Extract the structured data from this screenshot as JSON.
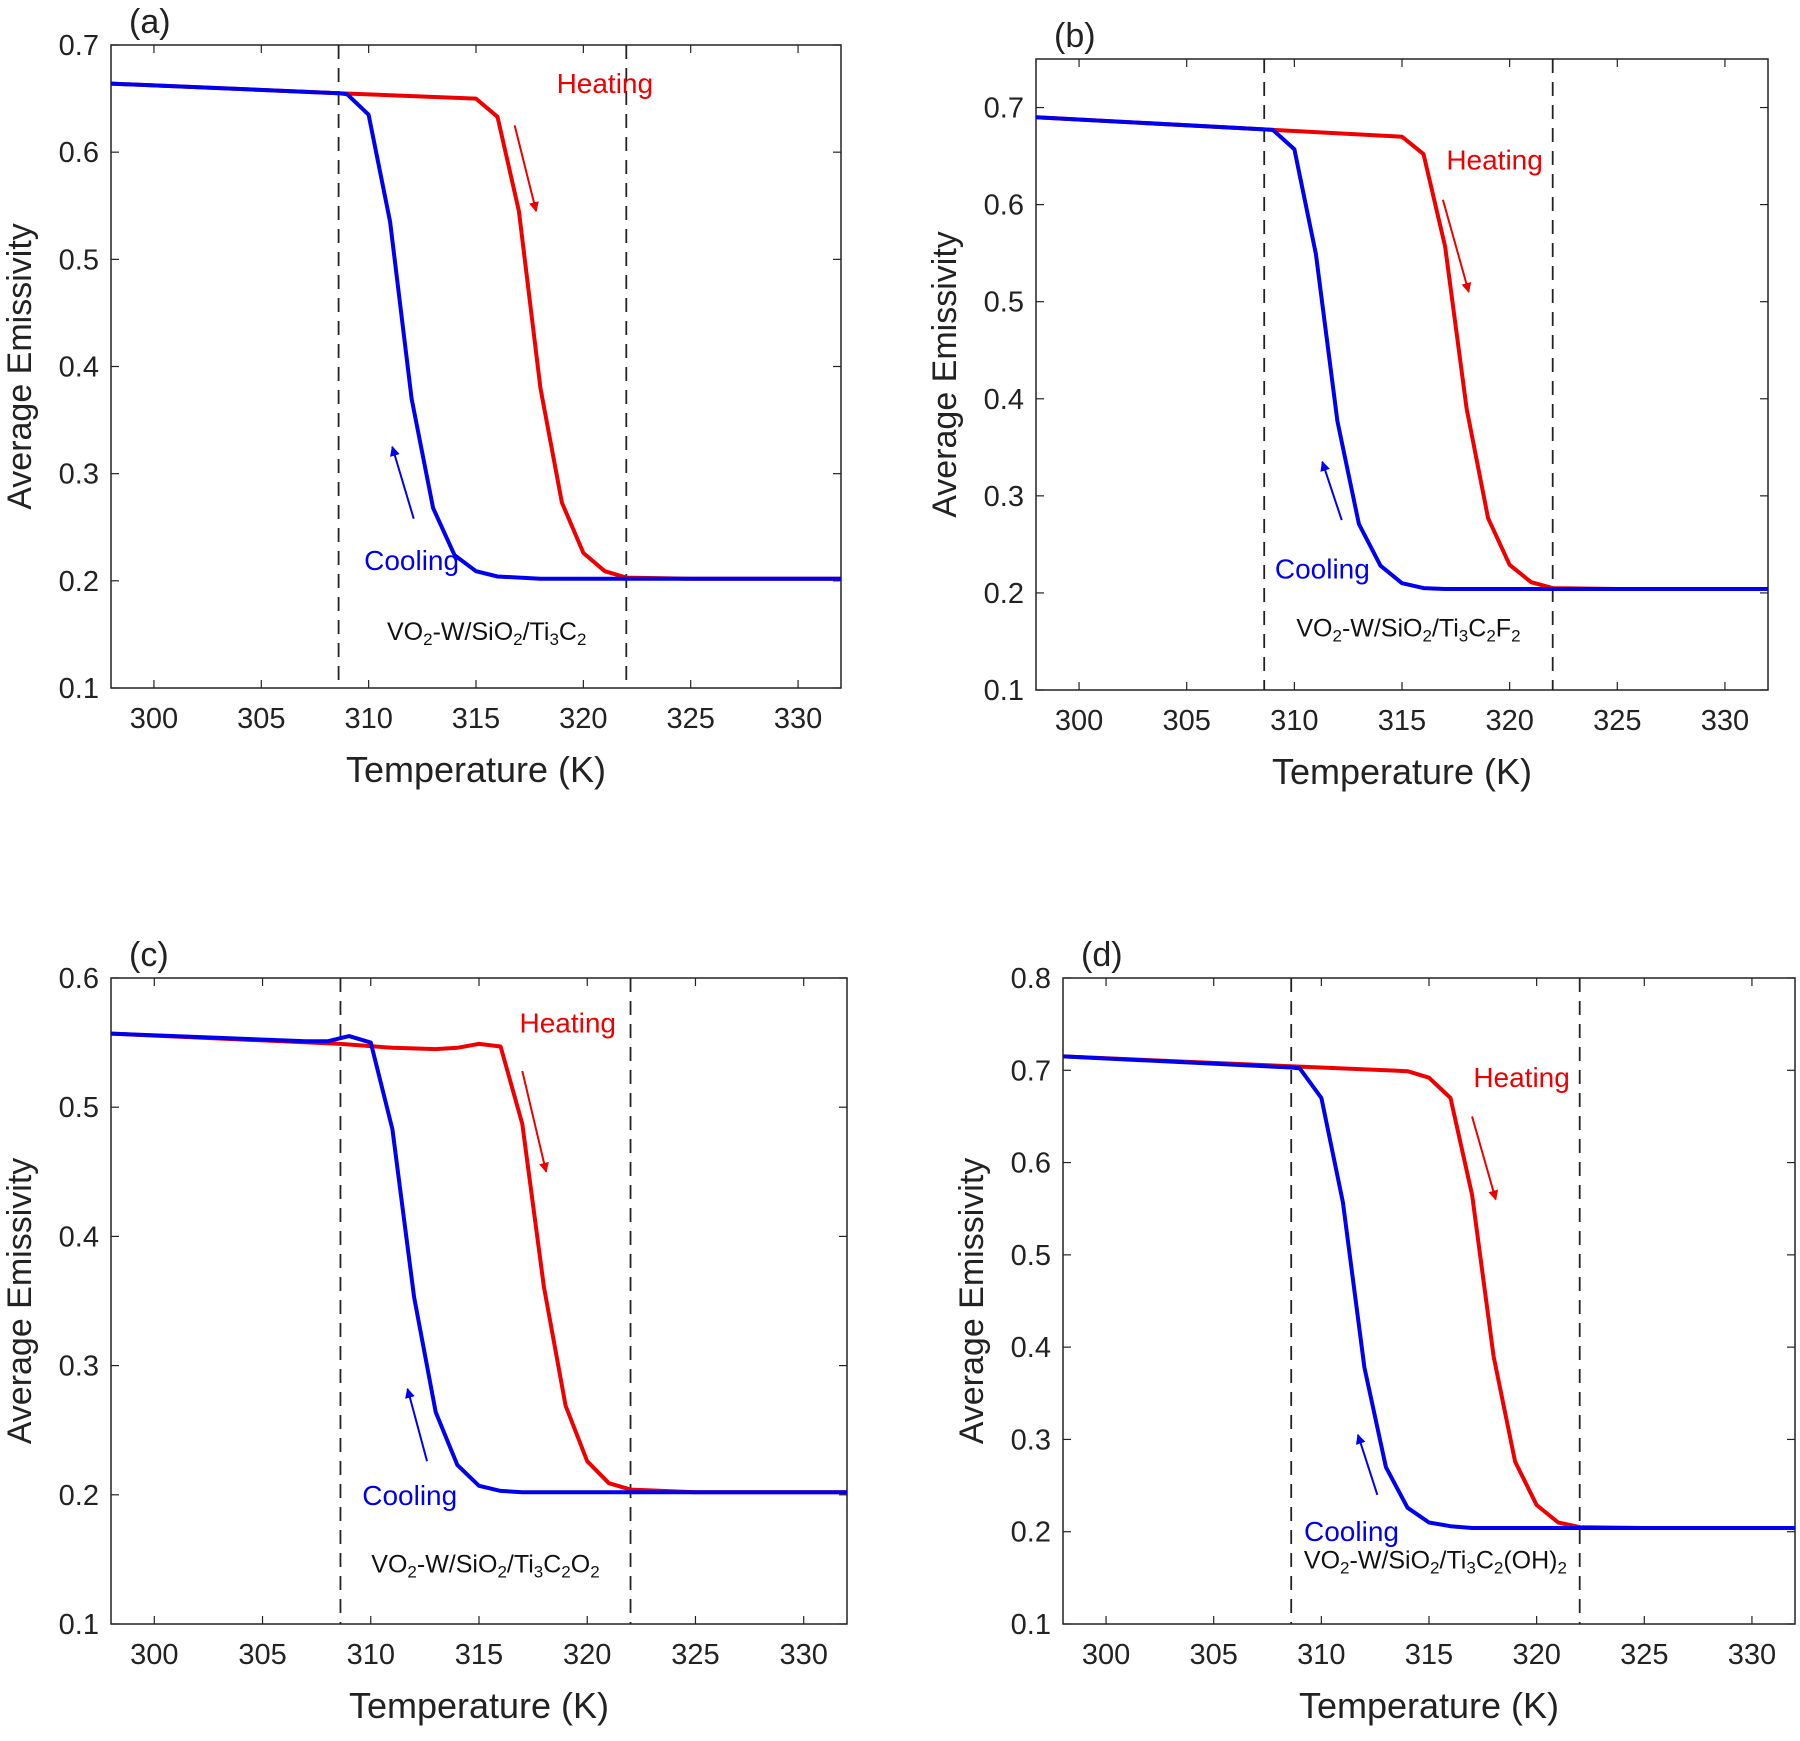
{
  "figure": {
    "description_source": "four-panel emissivity vs temperature figure"
  },
  "chart_data": [
    {
      "type": "line",
      "panel_label": "(a)",
      "xlabel": "Temperature (K)",
      "ylabel": "Average Emissivity",
      "xlim": [
        298,
        332
      ],
      "ylim": [
        0.1,
        0.7
      ],
      "xticks": [
        300,
        305,
        310,
        315,
        320,
        325,
        330
      ],
      "yticks": [
        0.1,
        0.2,
        0.3,
        0.4,
        0.5,
        0.6,
        0.7
      ],
      "vlines": [
        308.6,
        322
      ],
      "annotation": {
        "parts": [
          [
            "VO",
            ""
          ],
          [
            "2",
            "sub"
          ],
          [
            "-W/SiO",
            ""
          ],
          [
            "2",
            "sub"
          ],
          [
            "/Ti",
            ""
          ],
          [
            "3",
            "sub"
          ],
          [
            "C",
            ""
          ],
          [
            "2",
            "sub"
          ]
        ],
        "x": 315.5,
        "y": 0.145,
        "boxed": false
      },
      "heating_label": {
        "text": "Heating",
        "x": 321,
        "y": 0.655
      },
      "cooling_label": {
        "text": "Cooling",
        "x": 312,
        "y": 0.21
      },
      "heating_arrow": {
        "from": [
          316.8,
          0.625
        ],
        "to": [
          317.8,
          0.545
        ]
      },
      "cooling_arrow": {
        "from": [
          312.1,
          0.258
        ],
        "to": [
          311.1,
          0.325
        ]
      },
      "series": [
        {
          "name": "Heating",
          "color": "#ee0000",
          "x": [
            298,
            308.6,
            315,
            316,
            317,
            318,
            319,
            320,
            321,
            322,
            325,
            332
          ],
          "y": [
            0.664,
            0.655,
            0.65,
            0.633,
            0.545,
            0.38,
            0.273,
            0.226,
            0.209,
            0.203,
            0.202,
            0.202
          ]
        },
        {
          "name": "Cooling",
          "color": "#0000ee",
          "x": [
            298,
            308.6,
            309,
            310,
            311,
            312,
            313,
            314,
            315,
            316,
            318,
            322,
            332
          ],
          "y": [
            0.664,
            0.655,
            0.654,
            0.635,
            0.535,
            0.37,
            0.268,
            0.224,
            0.209,
            0.204,
            0.202,
            0.202,
            0.202
          ]
        }
      ]
    },
    {
      "type": "line",
      "panel_label": "(b)",
      "xlabel": "Temperature (K)",
      "ylabel": "Average Emissivity",
      "xlim": [
        298,
        332
      ],
      "ylim": [
        0.1,
        0.75
      ],
      "xticks": [
        300,
        305,
        310,
        315,
        320,
        325,
        330
      ],
      "yticks": [
        0.1,
        0.2,
        0.3,
        0.4,
        0.5,
        0.6,
        0.7
      ],
      "vlines": [
        308.6,
        322
      ],
      "annotation": {
        "parts": [
          [
            "VO",
            ""
          ],
          [
            "2",
            "sub"
          ],
          [
            "-W/SiO",
            ""
          ],
          [
            "2",
            "sub"
          ],
          [
            "/Ti",
            ""
          ],
          [
            "3",
            "sub"
          ],
          [
            "C",
            ""
          ],
          [
            "2",
            "sub"
          ],
          [
            "F",
            ""
          ],
          [
            "2",
            "sub"
          ]
        ],
        "x": 315.3,
        "y": 0.155,
        "boxed": true
      },
      "heating_label": {
        "text": "Heating",
        "x": 319.3,
        "y": 0.636
      },
      "cooling_label": {
        "text": "Cooling",
        "x": 311.3,
        "y": 0.215
      },
      "heating_arrow": {
        "from": [
          316.9,
          0.605
        ],
        "to": [
          318.1,
          0.51
        ]
      },
      "cooling_arrow": {
        "from": [
          312.2,
          0.275
        ],
        "to": [
          311.3,
          0.335
        ]
      },
      "series": [
        {
          "name": "Heating",
          "color": "#ee0000",
          "x": [
            298,
            309,
            315,
            316,
            317,
            318,
            319,
            320,
            321,
            322,
            325,
            332
          ],
          "y": [
            0.69,
            0.677,
            0.67,
            0.652,
            0.557,
            0.39,
            0.277,
            0.229,
            0.211,
            0.205,
            0.204,
            0.204
          ]
        },
        {
          "name": "Cooling",
          "color": "#0000ee",
          "x": [
            298,
            309,
            310,
            311,
            312,
            313,
            314,
            315,
            316,
            317,
            320,
            332
          ],
          "y": [
            0.69,
            0.677,
            0.657,
            0.549,
            0.377,
            0.271,
            0.228,
            0.21,
            0.205,
            0.204,
            0.204,
            0.204
          ]
        }
      ]
    },
    {
      "type": "line",
      "panel_label": "(c)",
      "xlabel": "Temperature (K)",
      "ylabel": "Average Emissivity",
      "xlim": [
        298,
        332
      ],
      "ylim": [
        0.1,
        0.6
      ],
      "xticks": [
        300,
        305,
        310,
        315,
        320,
        325,
        330
      ],
      "yticks": [
        0.1,
        0.2,
        0.3,
        0.4,
        0.5,
        0.6
      ],
      "vlines": [
        308.6,
        322
      ],
      "annotation": {
        "parts": [
          [
            "VO",
            ""
          ],
          [
            "2",
            "sub"
          ],
          [
            "-W/SiO",
            ""
          ],
          [
            "2",
            "sub"
          ],
          [
            "/Ti",
            ""
          ],
          [
            "3",
            "sub"
          ],
          [
            "C",
            ""
          ],
          [
            "2",
            "sub"
          ],
          [
            "O",
            ""
          ],
          [
            "2",
            "sub"
          ]
        ],
        "x": 315.3,
        "y": 0.14,
        "boxed": false
      },
      "heating_label": {
        "text": "Heating",
        "x": 319.1,
        "y": 0.558
      },
      "cooling_label": {
        "text": "Cooling",
        "x": 311.8,
        "y": 0.192
      },
      "heating_arrow": {
        "from": [
          317.0,
          0.528
        ],
        "to": [
          318.1,
          0.45
        ]
      },
      "cooling_arrow": {
        "from": [
          312.6,
          0.226
        ],
        "to": [
          311.7,
          0.282
        ]
      },
      "series": [
        {
          "name": "Heating",
          "color": "#ee0000",
          "x": [
            298,
            308.6,
            311,
            313,
            314,
            315,
            316,
            317,
            318,
            319,
            320,
            321,
            322,
            325,
            332
          ],
          "y": [
            0.557,
            0.549,
            0.546,
            0.545,
            0.546,
            0.549,
            0.547,
            0.487,
            0.361,
            0.269,
            0.226,
            0.209,
            0.204,
            0.202,
            0.202
          ]
        },
        {
          "name": "Cooling",
          "color": "#0000ee",
          "x": [
            298,
            307,
            308,
            309,
            310,
            311,
            312,
            313,
            314,
            315,
            316,
            317,
            318,
            322,
            332
          ],
          "y": [
            0.557,
            0.551,
            0.551,
            0.555,
            0.55,
            0.483,
            0.353,
            0.264,
            0.223,
            0.207,
            0.203,
            0.202,
            0.202,
            0.202,
            0.202
          ]
        }
      ]
    },
    {
      "type": "line",
      "panel_label": "(d)",
      "xlabel": "Temperature (K)",
      "ylabel": "Average Emissivity",
      "xlim": [
        298,
        332
      ],
      "ylim": [
        0.1,
        0.8
      ],
      "xticks": [
        300,
        305,
        310,
        315,
        320,
        325,
        330
      ],
      "yticks": [
        0.1,
        0.2,
        0.3,
        0.4,
        0.5,
        0.6,
        0.7,
        0.8
      ],
      "vlines": [
        308.6,
        322
      ],
      "annotation": {
        "parts": [
          [
            "VO",
            ""
          ],
          [
            "2",
            "sub"
          ],
          [
            "-W/SiO",
            ""
          ],
          [
            "2",
            "sub"
          ],
          [
            "/Ti",
            ""
          ],
          [
            "3",
            "sub"
          ],
          [
            "C",
            ""
          ],
          [
            "2",
            "sub"
          ],
          [
            "(OH)",
            ""
          ],
          [
            "2",
            "sub"
          ]
        ],
        "x": 315.3,
        "y": 0.16,
        "boxed": true
      },
      "heating_label": {
        "text": "Heating",
        "x": 319.3,
        "y": 0.682
      },
      "cooling_label": {
        "text": "Cooling",
        "x": 311.4,
        "y": 0.19
      },
      "heating_arrow": {
        "from": [
          317.0,
          0.65
        ],
        "to": [
          318.1,
          0.56
        ]
      },
      "cooling_arrow": {
        "from": [
          312.6,
          0.24
        ],
        "to": [
          311.7,
          0.305
        ]
      },
      "series": [
        {
          "name": "Heating",
          "color": "#ee0000",
          "x": [
            298,
            309,
            314,
            315,
            316,
            317,
            318,
            319,
            320,
            321,
            322,
            325,
            332
          ],
          "y": [
            0.715,
            0.704,
            0.699,
            0.692,
            0.67,
            0.565,
            0.39,
            0.276,
            0.229,
            0.21,
            0.205,
            0.204,
            0.204
          ]
        },
        {
          "name": "Cooling",
          "color": "#0000ee",
          "x": [
            298,
            308.6,
            309,
            310,
            311,
            312,
            313,
            314,
            315,
            316,
            317,
            320,
            332
          ],
          "y": [
            0.715,
            0.703,
            0.702,
            0.67,
            0.557,
            0.378,
            0.27,
            0.226,
            0.21,
            0.206,
            0.204,
            0.204,
            0.204
          ]
        }
      ]
    }
  ]
}
